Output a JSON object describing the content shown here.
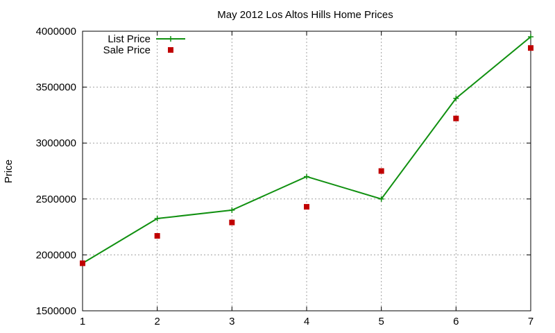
{
  "chart_data": {
    "type": "line",
    "title": "May 2012 Los Altos Hills Home Prices",
    "xlabel": "",
    "ylabel": "Price",
    "xlim": [
      1,
      7
    ],
    "ylim": [
      1500000,
      4000000
    ],
    "xticks": [
      "1",
      "2",
      "3",
      "4",
      "5",
      "6",
      "7"
    ],
    "yticks": [
      "1500000",
      "2000000",
      "2500000",
      "3000000",
      "3500000",
      "4000000"
    ],
    "grid": true,
    "legend_position": "top-left",
    "series": [
      {
        "name": "List Price",
        "style": "line+cross-markers",
        "color": "#109010",
        "x": [
          1,
          2,
          3,
          4,
          5,
          6,
          7
        ],
        "y": [
          1925000,
          2325000,
          2400000,
          2700000,
          2500000,
          3400000,
          3950000
        ]
      },
      {
        "name": "Sale Price",
        "style": "square-markers",
        "color": "#c00000",
        "x": [
          1,
          2,
          3,
          4,
          5,
          6,
          7
        ],
        "y": [
          1925000,
          2170000,
          2290000,
          2430000,
          2750000,
          3220000,
          3850000
        ]
      }
    ]
  }
}
